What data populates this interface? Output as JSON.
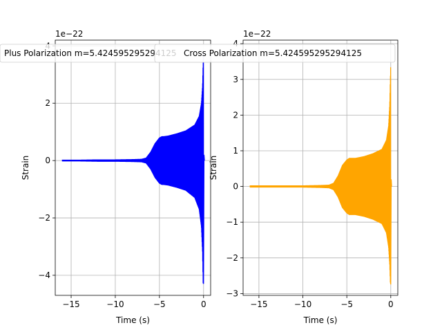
{
  "chart_data": [
    {
      "type": "line",
      "title": "",
      "legend": {
        "label": "Plus Polarization m=5.424595295294125",
        "placement": "upper-left"
      },
      "xlabel": "Time (s)",
      "ylabel": "Strain",
      "offset_text": "1e−22",
      "color": "#0000ff",
      "xlim": [
        -16.8,
        0.8
      ],
      "ylim": [
        -4.7,
        4.2
      ],
      "xticks": [
        -15,
        -10,
        -5,
        0
      ],
      "xtick_labels": [
        "−15",
        "−10",
        "−5",
        "0"
      ],
      "yticks": [
        -4,
        -2,
        0,
        2,
        4
      ],
      "ytick_labels": [
        "−4",
        "−2",
        "0",
        "2",
        "4"
      ],
      "grid": true,
      "envelope": {
        "t": [
          -16.0,
          -14.0,
          -12.0,
          -10.0,
          -8.0,
          -7.0,
          -6.5,
          -6.0,
          -5.5,
          -5.0,
          -4.7,
          -4.5,
          -4.0,
          -3.0,
          -2.0,
          -1.0,
          -0.5,
          -0.25,
          -0.12,
          -0.05,
          0.0
        ],
        "upper": [
          0.03,
          0.03,
          0.04,
          0.04,
          0.05,
          0.06,
          0.1,
          0.3,
          0.6,
          0.8,
          0.85,
          0.85,
          0.87,
          0.95,
          1.05,
          1.25,
          1.55,
          2.0,
          2.6,
          3.4,
          4.0
        ],
        "lower": [
          -0.03,
          -0.03,
          -0.04,
          -0.04,
          -0.05,
          -0.06,
          -0.1,
          -0.3,
          -0.6,
          -0.8,
          -0.85,
          -0.85,
          -0.87,
          -0.95,
          -1.05,
          -1.3,
          -1.7,
          -2.3,
          -3.2,
          -4.3,
          -4.3
        ]
      }
    },
    {
      "type": "line",
      "title": "",
      "legend": {
        "label": "Cross Polarization m=5.424595295294125",
        "placement": "upper-left"
      },
      "xlabel": "Time (s)",
      "ylabel": "Strain",
      "offset_text": "1e−22",
      "color": "#ffa500",
      "xlim": [
        -16.8,
        0.8
      ],
      "ylim": [
        -3.05,
        4.1
      ],
      "xticks": [
        -15,
        -10,
        -5,
        0
      ],
      "xtick_labels": [
        "−15",
        "−10",
        "−5",
        "0"
      ],
      "yticks": [
        -3,
        -2,
        -1,
        0,
        1,
        2,
        3,
        4
      ],
      "ytick_labels": [
        "−3",
        "−2",
        "−1",
        "0",
        "1",
        "2",
        "3",
        "4"
      ],
      "grid": true,
      "envelope": {
        "t": [
          -16.0,
          -14.0,
          -12.0,
          -10.0,
          -8.0,
          -7.0,
          -6.5,
          -6.0,
          -5.5,
          -5.0,
          -4.7,
          -4.5,
          -4.0,
          -3.0,
          -2.0,
          -1.0,
          -0.5,
          -0.25,
          -0.12,
          -0.05,
          0.0
        ],
        "upper": [
          0.03,
          0.03,
          0.03,
          0.03,
          0.04,
          0.05,
          0.1,
          0.3,
          0.6,
          0.75,
          0.8,
          0.8,
          0.8,
          0.85,
          0.93,
          1.05,
          1.3,
          1.7,
          2.3,
          3.0,
          3.5
        ],
        "lower": [
          -0.03,
          -0.03,
          -0.03,
          -0.03,
          -0.04,
          -0.05,
          -0.1,
          -0.3,
          -0.6,
          -0.75,
          -0.8,
          -0.8,
          -0.8,
          -0.85,
          -0.93,
          -1.05,
          -1.3,
          -1.7,
          -2.2,
          -2.7,
          -2.75
        ]
      }
    }
  ]
}
